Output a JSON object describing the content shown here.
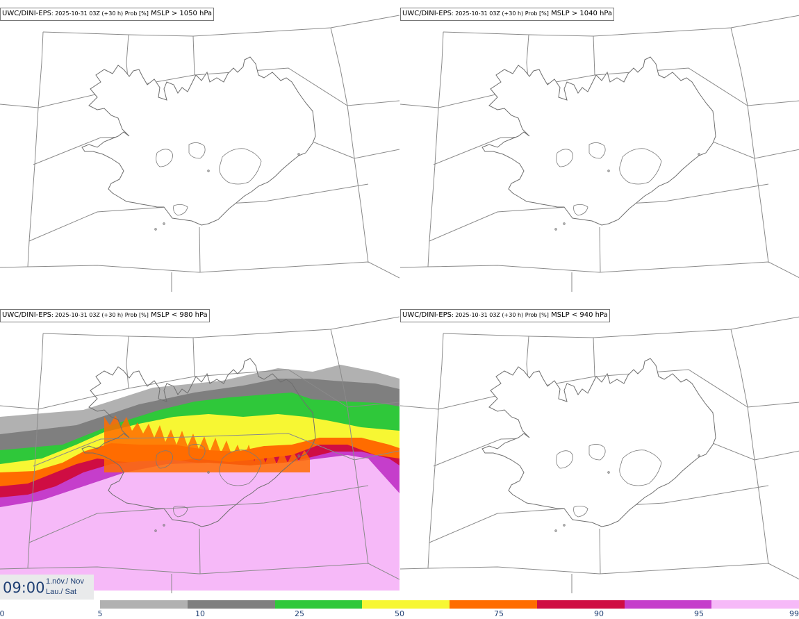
{
  "panels": [
    {
      "model": "UWC/DINI-EPS",
      "meta": ": 2025-10-31 03Z (+30 h) Prob [%]",
      "variable": "MSLP > 1050 hPa"
    },
    {
      "model": "UWC/DINI-EPS",
      "meta": ": 2025-10-31 03Z (+30 h) Prob [%]",
      "variable": "MSLP > 1040 hPa"
    },
    {
      "model": "UWC/DINI-EPS",
      "meta": ": 2025-10-31 03Z (+30 h) Prob [%]",
      "variable": "MSLP < 980 hPa"
    },
    {
      "model": "UWC/DINI-EPS",
      "meta": ": 2025-10-31 03Z (+30 h) Prob [%]",
      "variable": "MSLP < 940 hPa"
    }
  ],
  "valid_time": {
    "time": "09:00",
    "date_line1": "1.nóv./ Nov",
    "date_line2": "Lau./ Sat"
  },
  "colorbar": {
    "ticks": [
      "0",
      "5",
      "10",
      "25",
      "50",
      "75",
      "90",
      "95",
      "99"
    ],
    "colors": [
      "#b1b1b1",
      "#7f7f7f",
      "#2fc83a",
      "#f7f733",
      "#ff6c00",
      "#cf0d43",
      "#c53ecb",
      "#f6b9f8"
    ]
  },
  "field_colors": {
    "p5": "#b1b1b1",
    "p10": "#7f7f7f",
    "p25": "#2fc83a",
    "p50": "#f7f733",
    "p75": "#ff6c00",
    "p90": "#cf0d43",
    "p95": "#c53ecb",
    "p99": "#f6b9f8"
  }
}
